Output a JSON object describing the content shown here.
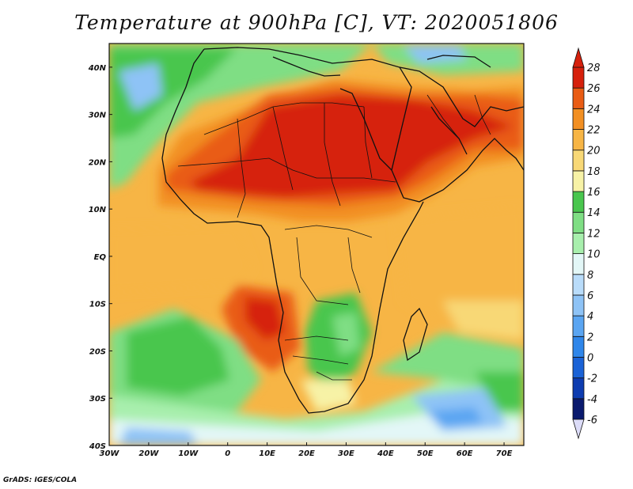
{
  "title": "Temperature at 900hPa [C], VT: 2020051806",
  "credit": "GrADS: IGES/COLA",
  "map": {
    "lon_range": [
      -30,
      75
    ],
    "lat_range": [
      -40,
      45
    ],
    "x_ticks": [
      {
        "lon": -30,
        "label": "30W"
      },
      {
        "lon": -20,
        "label": "20W"
      },
      {
        "lon": -10,
        "label": "10W"
      },
      {
        "lon": 0,
        "label": "0"
      },
      {
        "lon": 10,
        "label": "10E"
      },
      {
        "lon": 20,
        "label": "20E"
      },
      {
        "lon": 30,
        "label": "30E"
      },
      {
        "lon": 40,
        "label": "40E"
      },
      {
        "lon": 50,
        "label": "50E"
      },
      {
        "lon": 60,
        "label": "60E"
      },
      {
        "lon": 70,
        "label": "70E"
      }
    ],
    "y_ticks": [
      {
        "lat": 40,
        "label": "40N"
      },
      {
        "lat": 30,
        "label": "30N"
      },
      {
        "lat": 20,
        "label": "20N"
      },
      {
        "lat": 10,
        "label": "10N"
      },
      {
        "lat": 0,
        "label": "EQ"
      },
      {
        "lat": -10,
        "label": "10S"
      },
      {
        "lat": -20,
        "label": "20S"
      },
      {
        "lat": -30,
        "label": "30S"
      },
      {
        "lat": -40,
        "label": "40S"
      }
    ]
  },
  "colorbar": {
    "levels": [
      "-6",
      "-4",
      "-2",
      "0",
      "2",
      "4",
      "6",
      "8",
      "10",
      "12",
      "14",
      "16",
      "18",
      "20",
      "22",
      "24",
      "26",
      "28"
    ],
    "colors": [
      "#0a1a6e",
      "#0d3cb0",
      "#1a62d6",
      "#2f86ea",
      "#5aa5f2",
      "#8ec3f6",
      "#b9dcfa",
      "#e3f7f7",
      "#a8efad",
      "#7fde84",
      "#49c64e",
      "#f7f2a6",
      "#f8d876",
      "#f7b545",
      "#f28f22",
      "#e95c14",
      "#d6200c"
    ],
    "below_color": "#dcdcf8",
    "above_color": "#d6200c"
  }
}
